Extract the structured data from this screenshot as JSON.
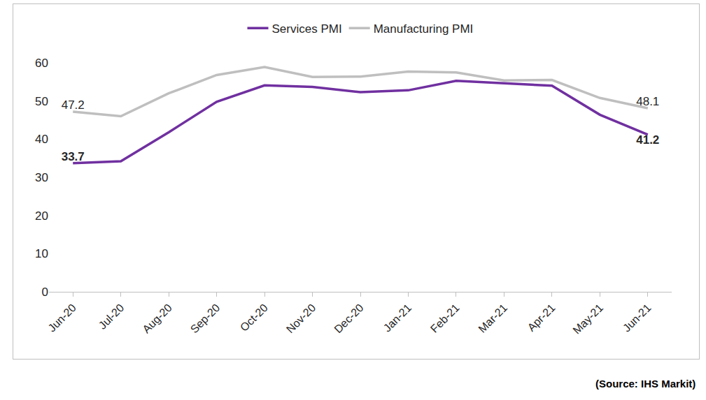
{
  "chart_data": {
    "type": "line",
    "categories": [
      "Jun-20",
      "Jul-20",
      "Aug-20",
      "Sep-20",
      "Oct-20",
      "Nov-20",
      "Dec-20",
      "Jan-21",
      "Feb-21",
      "Mar-21",
      "Apr-21",
      "May-21",
      "Jun-21"
    ],
    "series": [
      {
        "name": "Services PMI",
        "color": "#7030a0",
        "values": [
          33.7,
          34.2,
          41.8,
          49.8,
          54.1,
          53.7,
          52.3,
          52.8,
          55.3,
          54.6,
          54.0,
          46.4,
          41.2
        ],
        "value_labels": [
          "33.7",
          null,
          null,
          null,
          null,
          null,
          null,
          null,
          null,
          null,
          null,
          null,
          "41.2"
        ]
      },
      {
        "name": "Manufacturing PMI",
        "color": "#bfbfbf",
        "values": [
          47.2,
          46.0,
          52.0,
          56.8,
          58.9,
          56.3,
          56.4,
          57.7,
          57.5,
          55.4,
          55.5,
          50.8,
          48.1
        ],
        "value_labels": [
          "47.2",
          null,
          null,
          null,
          null,
          null,
          null,
          null,
          null,
          null,
          null,
          null,
          "48.1"
        ]
      }
    ],
    "ylim": [
      0,
      60
    ],
    "yticks": [
      0,
      10,
      20,
      30,
      40,
      50,
      60
    ],
    "grid": false,
    "legend": "top",
    "source": "(Source: IHS Markit)"
  }
}
